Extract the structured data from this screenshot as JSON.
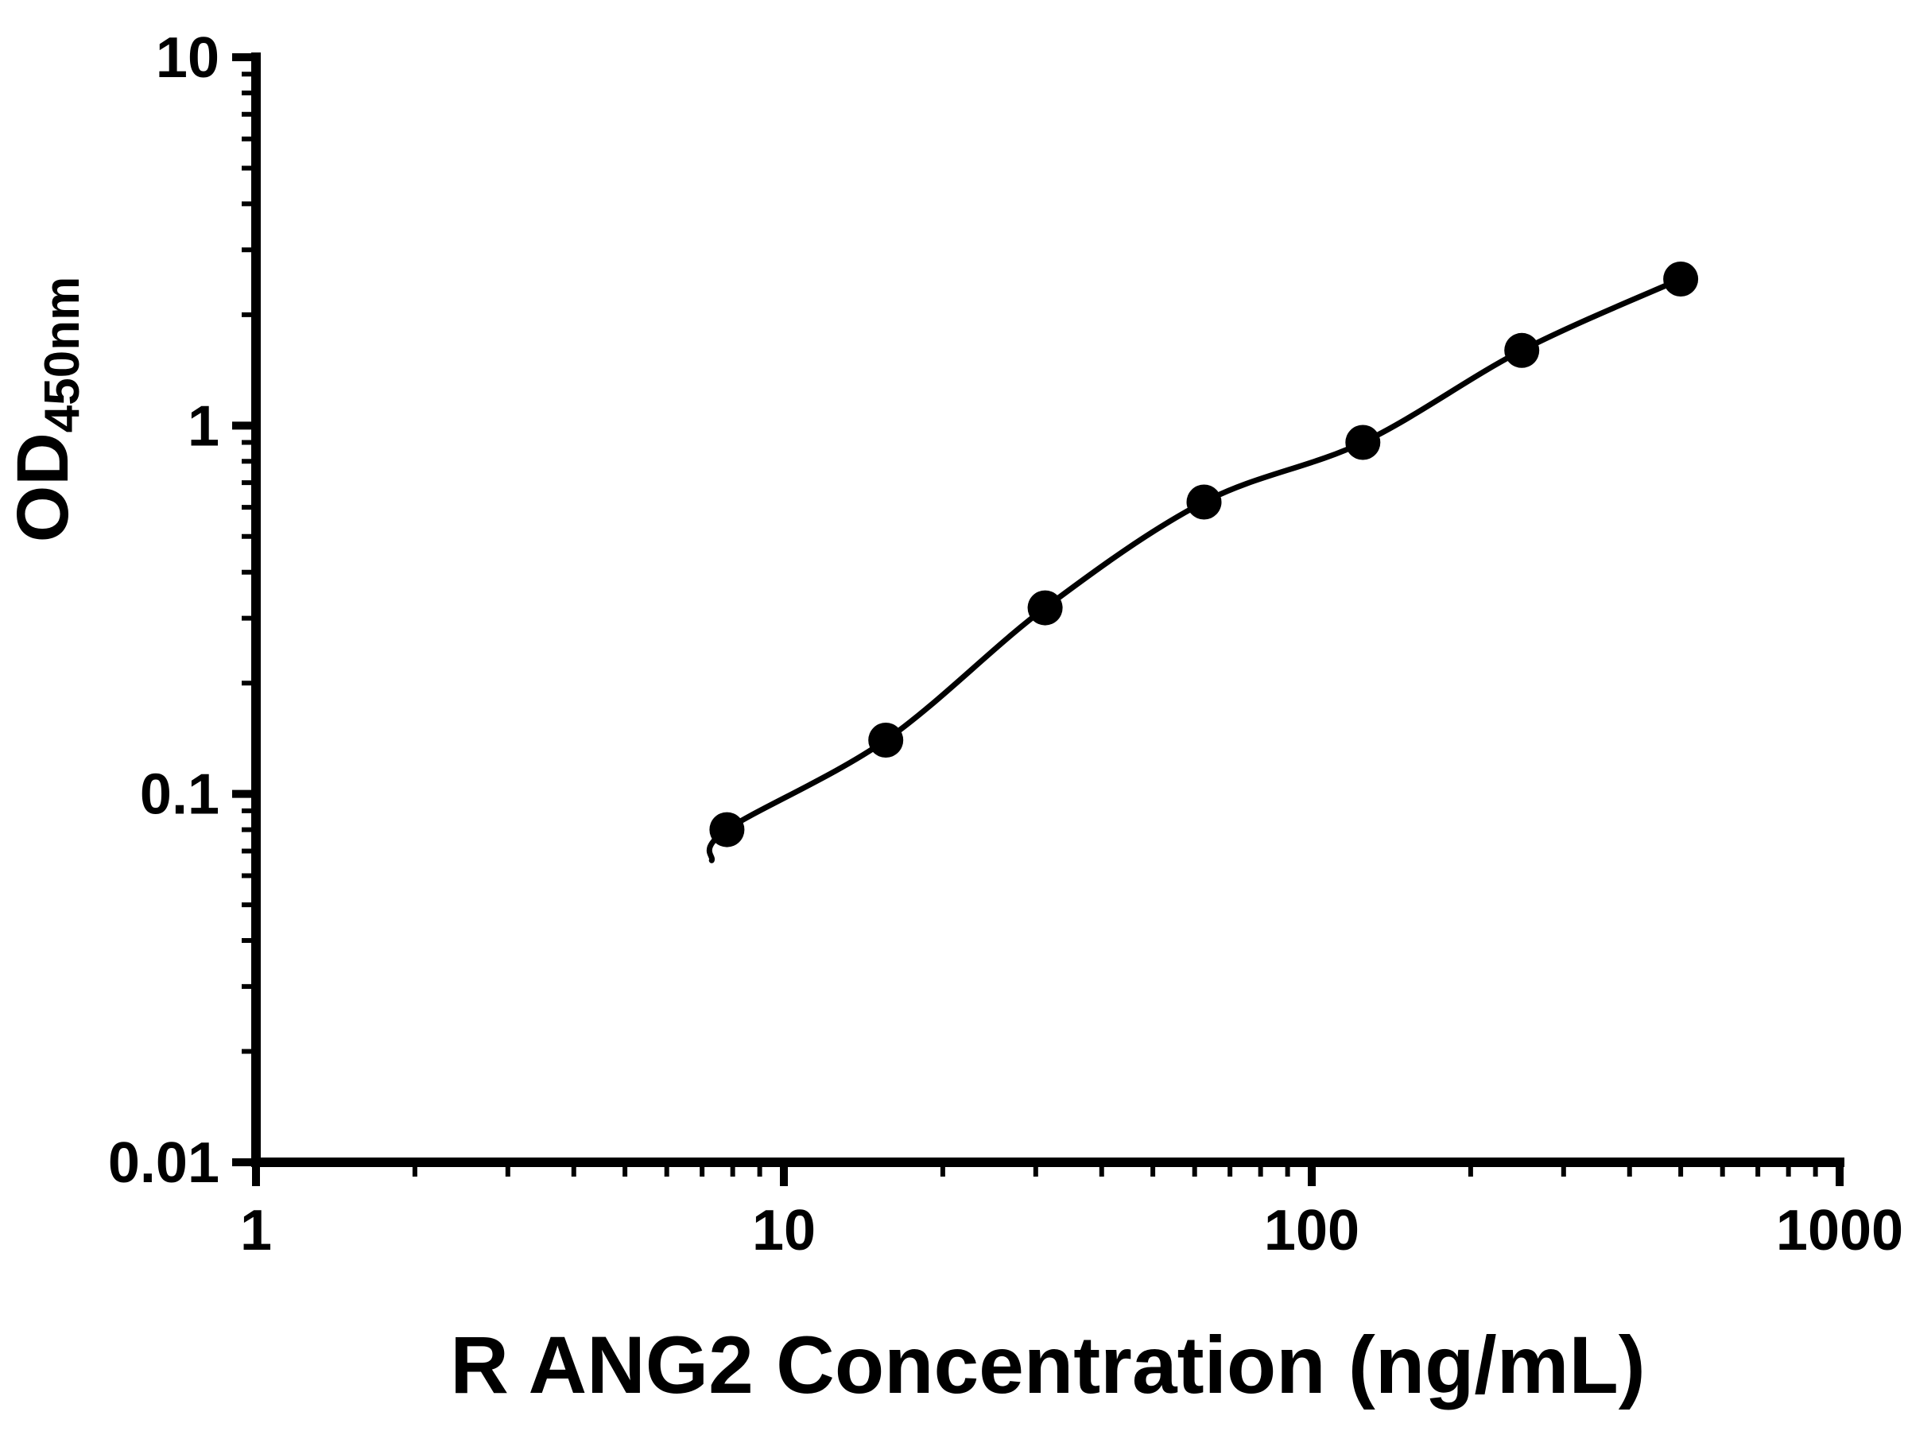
{
  "figure": {
    "background_color": "#ffffff"
  },
  "chart_data": {
    "type": "scatter",
    "subtype": "log-log ELISA standard curve with fitted line",
    "title": "",
    "xlabel": "R ANG2 Concentration (ng/mL)",
    "ylabel_main": "OD",
    "ylabel_sub": "450nm",
    "x_scale": "log",
    "y_scale": "log",
    "xlim": [
      1,
      1000
    ],
    "ylim": [
      0.01,
      10
    ],
    "x_ticks": [
      1,
      10,
      100,
      1000
    ],
    "x_tick_labels": [
      "1",
      "10",
      "100",
      "1000"
    ],
    "y_ticks": [
      0.01,
      0.1,
      1,
      10
    ],
    "y_tick_labels": [
      "0.01",
      "0.1",
      "1",
      "10"
    ],
    "minor_ticks": true,
    "grid": false,
    "legend": false,
    "marker_color": "#000000",
    "line_color": "#000000",
    "axis_color": "#000000",
    "points": [
      {
        "x": 7.8,
        "y": 0.08
      },
      {
        "x": 15.6,
        "y": 0.14
      },
      {
        "x": 31.25,
        "y": 0.32
      },
      {
        "x": 62.5,
        "y": 0.62
      },
      {
        "x": 125,
        "y": 0.9
      },
      {
        "x": 250,
        "y": 1.6
      },
      {
        "x": 500,
        "y": 2.5
      }
    ],
    "curve_start": {
      "x": 7.3,
      "y": 0.066
    }
  }
}
